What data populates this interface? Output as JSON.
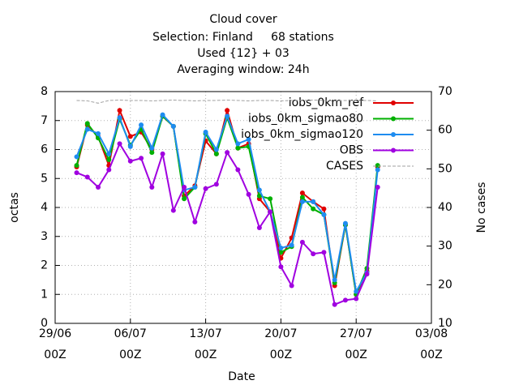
{
  "chart_data": {
    "type": "line",
    "title": [
      "Cloud cover",
      "Selection: Finland     68 stations",
      "Used {12} + 03",
      "Averaging window: 24h"
    ],
    "xlabel": "Date",
    "ylabel": "octas",
    "y2label": "No cases",
    "x": [
      "01/07 00Z",
      "02/07 00Z",
      "03/07 00Z",
      "04/07 00Z",
      "05/07 00Z",
      "06/07 00Z",
      "07/07 00Z",
      "08/07 00Z",
      "09/07 00Z",
      "10/07 00Z",
      "11/07 00Z",
      "12/07 00Z",
      "13/07 00Z",
      "14/07 00Z",
      "15/07 00Z",
      "16/07 00Z",
      "17/07 00Z",
      "18/07 00Z",
      "19/07 00Z",
      "20/07 00Z",
      "21/07 00Z",
      "22/07 00Z",
      "23/07 00Z",
      "24/07 00Z",
      "25/07 00Z",
      "26/07 00Z",
      "27/07 00Z",
      "28/07 00Z",
      "29/07 00Z"
    ],
    "xlim": [
      "29/06 00Z",
      "03/08 00Z"
    ],
    "xticks": [
      "29/06 00Z",
      "06/07 00Z",
      "13/07 00Z",
      "20/07 00Z",
      "27/07 00Z",
      "03/08 00Z"
    ],
    "ylim": [
      0,
      8
    ],
    "yticks": [
      0,
      1,
      2,
      3,
      4,
      5,
      6,
      7,
      8
    ],
    "y2lim": [
      10,
      70
    ],
    "y2ticks": [
      10,
      20,
      30,
      40,
      50,
      60,
      70
    ],
    "grid": true,
    "legend": "top-right",
    "series": [
      {
        "name": "iobs_0km_ref",
        "color": "#e00000",
        "values": [
          5.4,
          6.85,
          6.45,
          5.45,
          7.35,
          6.45,
          6.6,
          6.0,
          7.15,
          6.8,
          4.4,
          4.75,
          6.3,
          5.85,
          7.35,
          6.05,
          6.2,
          4.3,
          3.85,
          2.25,
          2.95,
          4.5,
          4.2,
          3.95,
          1.3,
          3.4,
          1.0,
          1.8,
          5.4
        ]
      },
      {
        "name": "iobs_0km_sigmao80",
        "color": "#00b000",
        "values": [
          5.45,
          6.9,
          6.4,
          5.65,
          7.05,
          6.15,
          6.7,
          5.9,
          7.15,
          6.8,
          4.3,
          4.7,
          6.55,
          5.85,
          7.1,
          6.05,
          6.1,
          4.4,
          4.3,
          2.45,
          2.65,
          4.35,
          3.95,
          3.75,
          1.4,
          3.4,
          1.0,
          1.9,
          5.45
        ]
      },
      {
        "name": "iobs_0km_sigmao120",
        "color": "#1e8cf0",
        "values": [
          5.75,
          6.7,
          6.55,
          5.85,
          7.1,
          6.1,
          6.85,
          6.05,
          7.2,
          6.8,
          4.6,
          4.7,
          6.6,
          6.0,
          7.15,
          6.2,
          6.35,
          4.6,
          3.85,
          2.6,
          2.7,
          4.2,
          4.2,
          3.75,
          1.5,
          3.45,
          1.1,
          1.75,
          5.3
        ]
      },
      {
        "name": "OBS",
        "color": "#a000e0",
        "values": [
          5.2,
          5.05,
          4.7,
          5.3,
          6.2,
          5.6,
          5.7,
          4.7,
          5.85,
          3.9,
          4.7,
          3.5,
          4.65,
          4.8,
          5.9,
          5.3,
          4.45,
          3.3,
          3.85,
          1.95,
          1.3,
          2.8,
          2.4,
          2.45,
          0.65,
          0.8,
          0.85,
          1.7,
          4.7
        ]
      },
      {
        "name": "CASES",
        "color": "#a0a0a0",
        "axis": "y2",
        "dashed": true,
        "values": [
          67.7,
          67.6,
          67.0,
          67.7,
          67.8,
          67.7,
          67.7,
          67.6,
          67.7,
          67.8,
          67.7,
          67.6,
          67.7,
          67.7,
          67.8,
          67.7,
          67.6,
          67.7,
          67.7,
          67.6,
          67.7,
          67.7,
          67.8,
          67.7,
          67.6,
          67.7,
          67.7,
          67.7,
          67.6
        ]
      }
    ]
  }
}
